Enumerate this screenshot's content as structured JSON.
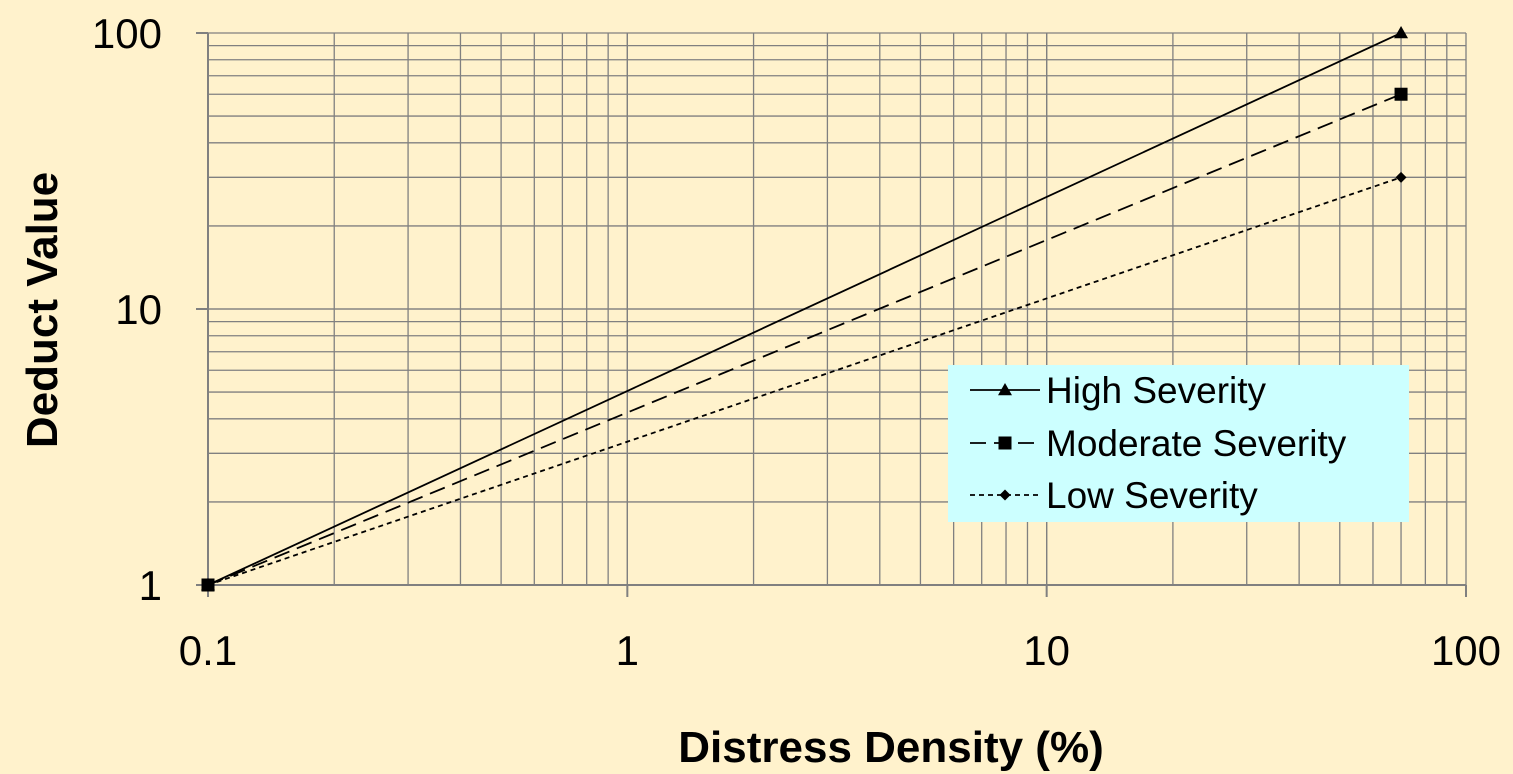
{
  "chart_data": {
    "type": "line",
    "x_scale": "log",
    "y_scale": "log",
    "xlim": [
      0.1,
      100
    ],
    "ylim": [
      1,
      100
    ],
    "xlabel": "Distress Density (%)",
    "ylabel": "Deduct Value",
    "x_ticks": [
      0.1,
      1,
      10,
      100
    ],
    "x_tick_labels": [
      "0.1",
      "1",
      "10",
      "100"
    ],
    "y_ticks": [
      1,
      10,
      100
    ],
    "y_tick_labels": [
      "1",
      "10",
      "100"
    ],
    "grid": true,
    "legend_position": "lower-right",
    "colors": {
      "background": "#FFF2CC",
      "grid": "#808080",
      "legend_background": "#CCFFFF",
      "series": "#000000"
    },
    "series": [
      {
        "name": "High Severity",
        "marker": "triangle",
        "line_style": "solid",
        "x": [
          0.1,
          70
        ],
        "y": [
          1,
          100
        ]
      },
      {
        "name": "Moderate Severity",
        "marker": "square",
        "line_style": "dashed",
        "x": [
          0.1,
          70
        ],
        "y": [
          1,
          60
        ]
      },
      {
        "name": "Low Severity",
        "marker": "diamond",
        "line_style": "dotted",
        "x": [
          0.1,
          70
        ],
        "y": [
          1,
          30
        ]
      }
    ]
  }
}
